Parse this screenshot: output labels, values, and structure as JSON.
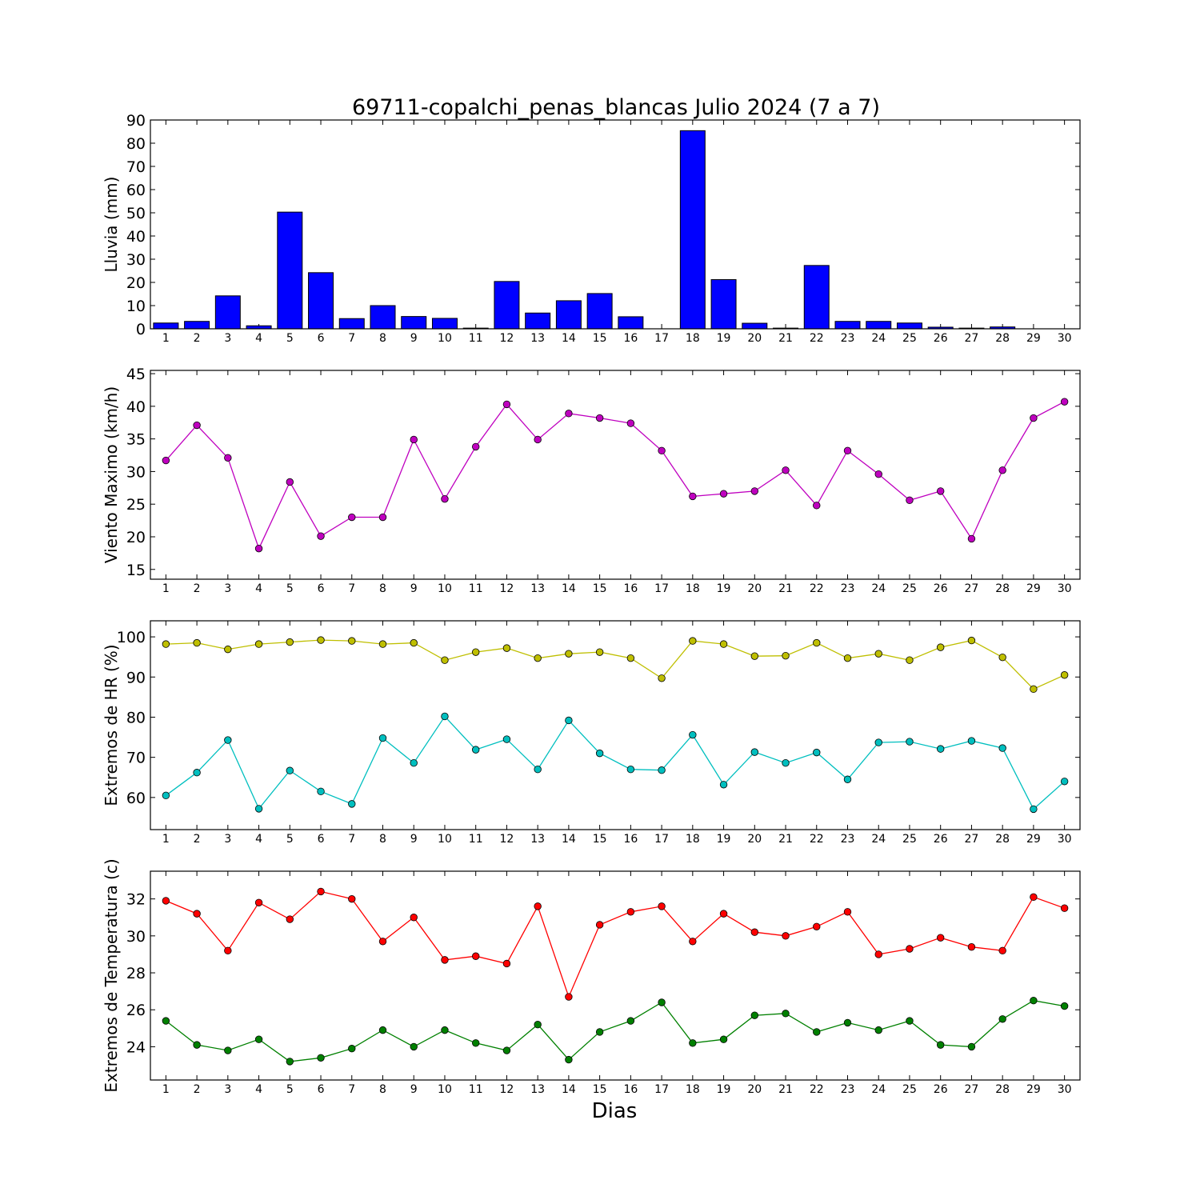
{
  "title": "69711-copalchi_penas_blancas Julio 2024  (7 a 7)",
  "xlabel": "Dias",
  "chart_data": [
    {
      "type": "bar",
      "ylabel": "Lluvia (mm)",
      "ylim": [
        0,
        90
      ],
      "yticks": [
        0,
        10,
        20,
        30,
        40,
        50,
        60,
        70,
        80,
        90
      ],
      "color": "#0000ff",
      "categories": [
        1,
        2,
        3,
        4,
        5,
        6,
        7,
        8,
        9,
        10,
        11,
        12,
        13,
        14,
        15,
        16,
        17,
        18,
        19,
        20,
        21,
        22,
        23,
        24,
        25,
        26,
        27,
        28,
        29,
        30
      ],
      "values": [
        2.5,
        3.2,
        14.2,
        1.3,
        50.3,
        24.2,
        4.4,
        10.0,
        5.3,
        4.5,
        0.3,
        20.4,
        6.8,
        12.1,
        15.2,
        5.2,
        0,
        85.4,
        21.2,
        2.4,
        0.3,
        27.3,
        3.2,
        3.2,
        2.5,
        0.7,
        0.3,
        0.8,
        0.1,
        0
      ]
    },
    {
      "type": "line",
      "ylabel": "Viento Maximo (km/h)",
      "ylim": [
        13.5,
        45.5
      ],
      "yticks": [
        15,
        20,
        25,
        30,
        35,
        40,
        45
      ],
      "x": [
        1,
        2,
        3,
        4,
        5,
        6,
        7,
        8,
        9,
        10,
        11,
        12,
        13,
        14,
        15,
        16,
        17,
        18,
        19,
        20,
        21,
        22,
        23,
        24,
        25,
        26,
        27,
        28,
        29,
        30
      ],
      "series": [
        {
          "color": "#bf00bf",
          "values": [
            31.7,
            37.1,
            32.1,
            18.2,
            28.4,
            20.1,
            23.0,
            23.0,
            34.9,
            25.8,
            33.8,
            40.3,
            34.9,
            38.9,
            38.2,
            37.4,
            33.2,
            26.2,
            26.6,
            27.0,
            30.2,
            24.8,
            33.2,
            29.6,
            25.6,
            27.0,
            19.7,
            30.2,
            38.2,
            40.7
          ]
        }
      ]
    },
    {
      "type": "line",
      "ylabel": "Extremos de HR (%)",
      "ylim": [
        52,
        104
      ],
      "yticks": [
        60,
        70,
        80,
        90,
        100
      ],
      "x": [
        1,
        2,
        3,
        4,
        5,
        6,
        7,
        8,
        9,
        10,
        11,
        12,
        13,
        14,
        15,
        16,
        17,
        18,
        19,
        20,
        21,
        22,
        23,
        24,
        25,
        26,
        27,
        28,
        29,
        30
      ],
      "series": [
        {
          "color": "#bfbf00",
          "values": [
            98.2,
            98.5,
            96.9,
            98.2,
            98.7,
            99.2,
            99.0,
            98.2,
            98.5,
            94.2,
            96.2,
            97.2,
            94.7,
            95.8,
            96.2,
            94.7,
            89.7,
            99.0,
            98.2,
            95.2,
            95.3,
            98.5,
            94.7,
            95.8,
            94.2,
            97.4,
            99.1,
            94.9,
            87.0,
            90.5
          ]
        },
        {
          "color": "#00bfbf",
          "values": [
            60.5,
            66.2,
            74.3,
            57.2,
            66.7,
            61.5,
            58.4,
            74.8,
            68.6,
            80.2,
            71.9,
            74.5,
            67.0,
            79.2,
            71.0,
            67.0,
            66.8,
            75.6,
            63.2,
            71.3,
            68.6,
            71.2,
            64.5,
            73.7,
            73.9,
            72.1,
            74.1,
            72.3,
            57.1,
            64.0
          ]
        }
      ]
    },
    {
      "type": "line",
      "ylabel": "Extremos de Temperatura (c)",
      "ylim": [
        22.2,
        33.5
      ],
      "yticks": [
        24,
        26,
        28,
        30,
        32
      ],
      "x": [
        1,
        2,
        3,
        4,
        5,
        6,
        7,
        8,
        9,
        10,
        11,
        12,
        13,
        14,
        15,
        16,
        17,
        18,
        19,
        20,
        21,
        22,
        23,
        24,
        25,
        26,
        27,
        28,
        29,
        30
      ],
      "series": [
        {
          "color": "#ff0000",
          "values": [
            31.9,
            31.2,
            29.2,
            31.8,
            30.9,
            32.4,
            32.0,
            29.7,
            31.0,
            28.7,
            28.9,
            28.5,
            31.6,
            26.7,
            30.6,
            31.3,
            31.6,
            29.7,
            31.2,
            30.2,
            30.0,
            30.5,
            31.3,
            29.0,
            29.3,
            29.9,
            29.4,
            29.2,
            32.1,
            31.5
          ]
        },
        {
          "color": "#008000",
          "values": [
            25.4,
            24.1,
            23.8,
            24.4,
            23.2,
            23.4,
            23.9,
            24.9,
            24.0,
            24.9,
            24.2,
            23.8,
            25.2,
            23.3,
            24.8,
            25.4,
            26.4,
            24.2,
            24.4,
            25.7,
            25.8,
            24.8,
            25.3,
            24.9,
            25.4,
            24.1,
            24.0,
            25.5,
            26.5,
            26.2
          ]
        }
      ]
    }
  ]
}
